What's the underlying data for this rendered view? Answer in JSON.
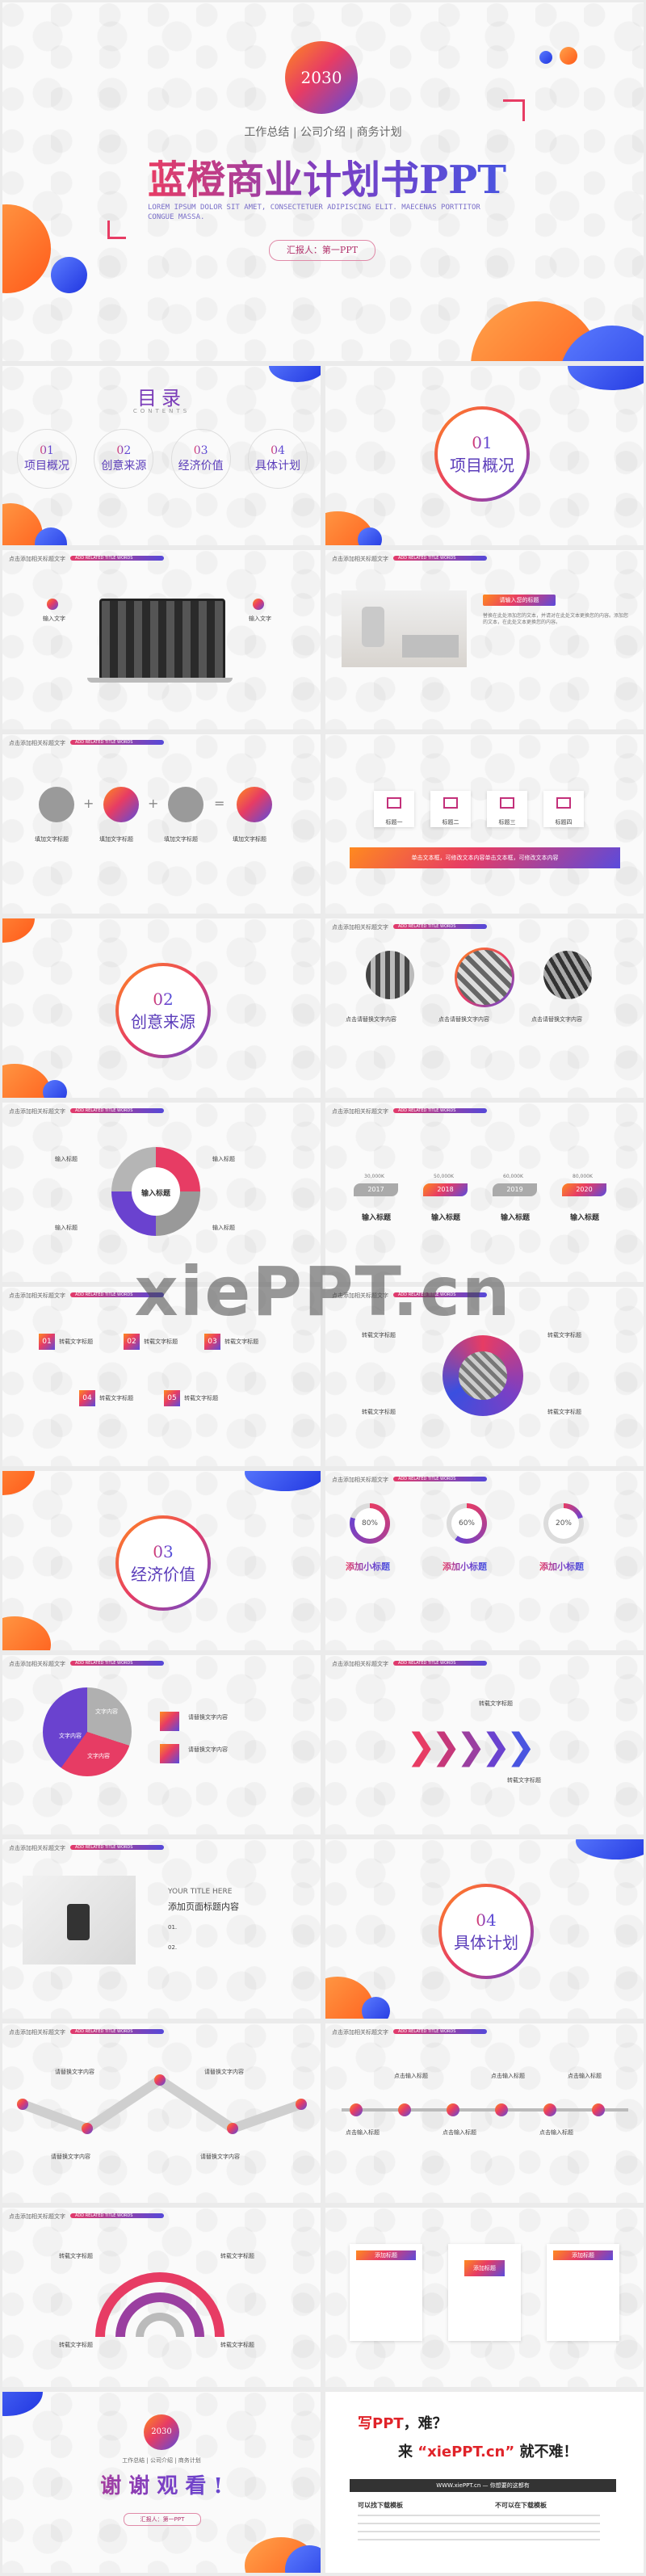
{
  "cover": {
    "year": "2030",
    "nav": "工作总结 | 公司介绍 | 商务计划",
    "title": "蓝橙商业计划书PPT",
    "subtitle": "LOREM IPSUM DOLOR SIT AMET, CONSECTETUER ADIPISCING ELIT. MAECENAS PORTTITOR CONGUE MASSA.",
    "reporter": "汇报人：第一PPT"
  },
  "toc": {
    "title": "目录",
    "subtitle": "CONTENTS",
    "items": [
      {
        "num": "01",
        "label": "项目概况"
      },
      {
        "num": "02",
        "label": "创意来源"
      },
      {
        "num": "03",
        "label": "经济价值"
      },
      {
        "num": "04",
        "label": "具体计划"
      }
    ]
  },
  "sections": [
    {
      "num": "01",
      "label": "项目概况"
    },
    {
      "num": "02",
      "label": "创意来源"
    },
    {
      "num": "03",
      "label": "经济价值"
    },
    {
      "num": "04",
      "label": "具体计划"
    }
  ],
  "header": {
    "tag": "点击添加相关标题文字",
    "bar": "ADD RELATED TITLE WORDS"
  },
  "watermark": "xiePPT.cn",
  "s3": {
    "left": "输入文字",
    "right": "输入文字"
  },
  "s4": {
    "button": "请输入您的标题",
    "body": "替换在此处添加您的文本，并请对在此处文本更换您的内容。添加您的文本，在此处文本更换您的内容。"
  },
  "s5": {
    "items": [
      "填加文字标题",
      "填加文字标题",
      "填加文字标题",
      "填加文字标题"
    ]
  },
  "s6": {
    "tabs": [
      "标题一",
      "标题二",
      "标题三",
      "标题四"
    ],
    "bar": "单击文本框，可修改文本内容单击文本框，可修改文本内容"
  },
  "s8": {
    "items": [
      "点击请替换文字内容",
      "点击请替换文字内容",
      "点击请替换文字内容"
    ]
  },
  "s9": {
    "center": "输入标题",
    "labels": [
      "输入标题",
      "输入标题",
      "输入标题",
      "输入标题"
    ]
  },
  "s10": {
    "values": [
      "30,000K",
      "50,000K",
      "60,000K",
      "80,000K"
    ],
    "years": [
      "2017",
      "2018",
      "2019",
      "2020"
    ],
    "labels": [
      "输入标题",
      "输入标题",
      "输入标题",
      "输入标题"
    ]
  },
  "s11": {
    "items": [
      {
        "num": "01",
        "label": "转载文字标题"
      },
      {
        "num": "02",
        "label": "转载文字标题"
      },
      {
        "num": "03",
        "label": "转载文字标题"
      },
      {
        "num": "04",
        "label": "转载文字标题"
      },
      {
        "num": "05",
        "label": "转载文字标题"
      }
    ]
  },
  "s12": {
    "items": [
      "转载文字标题",
      "转载文字标题",
      "转载文字标题",
      "转载文字标题"
    ]
  },
  "s14": {
    "rings": [
      {
        "value": 80,
        "label": "80%"
      },
      {
        "value": 60,
        "label": "60%"
      },
      {
        "value": 20,
        "label": "20%"
      }
    ],
    "titles": [
      "添加小标题",
      "添加小标题",
      "添加小标题"
    ]
  },
  "s15": {
    "pie": [
      "文字内容",
      "文字内容",
      "文字内容"
    ],
    "items": [
      "请替换文字内容",
      "请替换文字内容"
    ]
  },
  "s16": {
    "items": [
      "转载文字标题",
      "转载文字标题"
    ]
  },
  "s17": {
    "en": "YOUR TITLE HERE",
    "cn": "添加页面标题内容",
    "items": [
      "01.",
      "02."
    ]
  },
  "s19": {
    "items": [
      "请替换文字内容",
      "请替换文字内容",
      "请替换文字内容",
      "请替换文字内容"
    ]
  },
  "s20": {
    "items": [
      "点击输入标题",
      "点击输入标题",
      "点击输入标题",
      "点击输入标题",
      "点击输入标题",
      "点击输入标题"
    ]
  },
  "s21": {
    "items": [
      "转载文字标题",
      "转载文字标题",
      "转载文字标题",
      "转载文字标题"
    ]
  },
  "s22": {
    "items": [
      "添加标题",
      "添加标题",
      "添加标题"
    ]
  },
  "end": {
    "year": "2030",
    "nav": "工作总结 | 公司介绍 | 商务计划",
    "title": "谢 谢 观 看 !",
    "reporter": "汇报人：第一PPT"
  },
  "promo": {
    "line1": "写PPT，难？",
    "line2": "来 “xiePPT.cn” 就不难！",
    "site": "WWW.xiePPT.cn — 你想要的这都有",
    "col1": "可以找下载模板",
    "col2": "不可以在下载模板"
  },
  "colors": {
    "orange": "#ff7a1f",
    "pink": "#e73c64",
    "purple": "#6a42cf",
    "blue": "#3a4fe0"
  }
}
